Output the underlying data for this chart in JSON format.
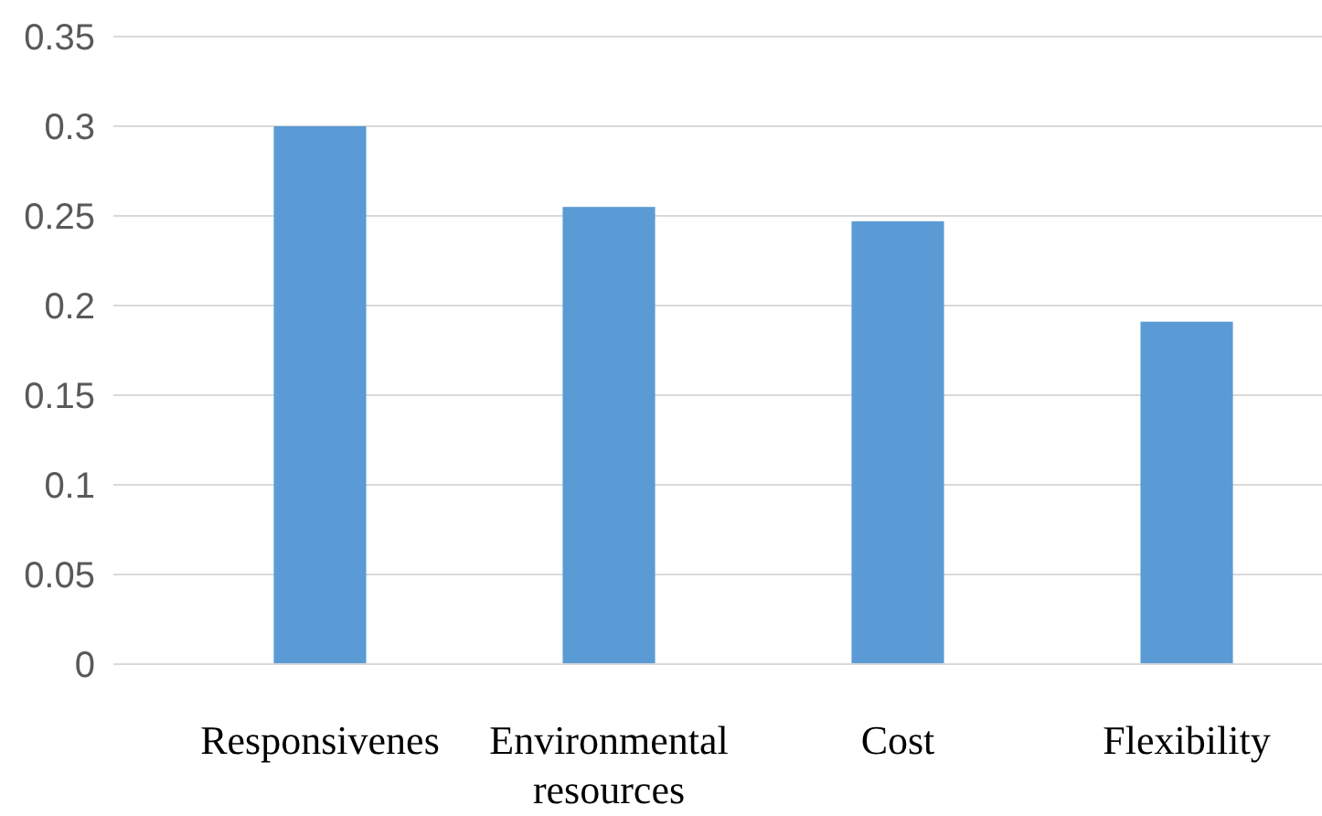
{
  "chart_data": {
    "type": "bar",
    "categories": [
      "Responsivenes",
      "Environmental resources",
      "Cost",
      "Flexibility"
    ],
    "values": [
      0.3,
      0.255,
      0.247,
      0.191
    ],
    "color": "#5b9bd5",
    "ylim": [
      0,
      0.35
    ],
    "yticks": [
      0,
      0.05,
      0.1,
      0.15,
      0.2,
      0.25,
      0.3,
      0.35
    ],
    "grid": "y"
  }
}
